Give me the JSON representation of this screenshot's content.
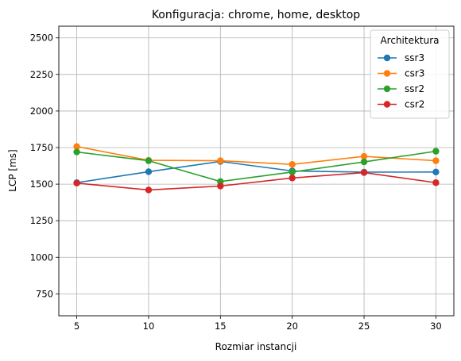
{
  "chart_data": {
    "type": "line",
    "title": "Konfiguracja: chrome, home, desktop",
    "xlabel": "Rozmiar instancji",
    "ylabel": "LCP [ms]",
    "x": [
      5,
      10,
      15,
      20,
      25,
      30
    ],
    "xlim": [
      3.75,
      31.25
    ],
    "ylim": [
      600,
      2580
    ],
    "xticks": [
      5,
      10,
      15,
      20,
      25,
      30
    ],
    "yticks": [
      750,
      1000,
      1250,
      1500,
      1750,
      2000,
      2250,
      2500
    ],
    "grid": true,
    "legend": {
      "title": "Architektura",
      "placement": "top-right"
    },
    "series": [
      {
        "name": "ssr3",
        "color": "#1f77b4",
        "values": [
          1510,
          1585,
          1655,
          1590,
          1582,
          1583
        ]
      },
      {
        "name": "csr3",
        "color": "#ff7f0e",
        "values": [
          1757,
          1663,
          1660,
          1635,
          1690,
          1660
        ]
      },
      {
        "name": "ssr2",
        "color": "#2ca02c",
        "values": [
          1720,
          1660,
          1518,
          1583,
          1652,
          1725
        ]
      },
      {
        "name": "csr2",
        "color": "#d62728",
        "values": [
          1507,
          1460,
          1487,
          1542,
          1579,
          1510
        ]
      }
    ]
  }
}
